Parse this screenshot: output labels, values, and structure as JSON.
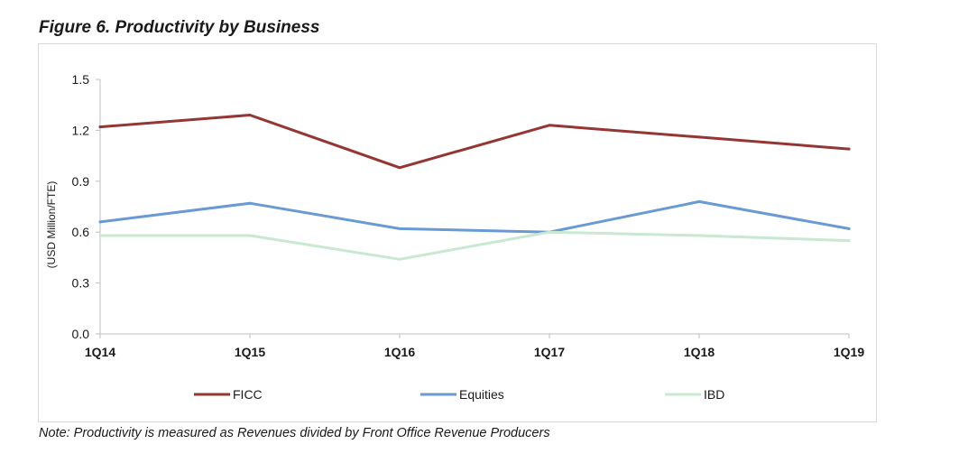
{
  "figure": {
    "title": "Figure 6. Productivity by Business",
    "note": "Note: Productivity is measured as Revenues divided by Front Office Revenue Producers"
  },
  "chart_data": {
    "type": "line",
    "title": "Figure 6. Productivity by Business",
    "xlabel": "",
    "ylabel": "(USD Million/FTE)",
    "categories": [
      "1Q14",
      "1Q15",
      "1Q16",
      "1Q17",
      "1Q18",
      "1Q19"
    ],
    "ylim": [
      0,
      1.5
    ],
    "yticks": [
      0.0,
      0.3,
      0.6,
      0.9,
      1.2,
      1.5
    ],
    "ytick_labels": [
      "0.0",
      "0.3",
      "0.6",
      "0.9",
      "1.2",
      "1.5"
    ],
    "grid": false,
    "legend_position": "bottom",
    "series": [
      {
        "name": "FICC",
        "color": "#943634",
        "values": [
          1.22,
          1.29,
          0.98,
          1.23,
          1.16,
          1.09
        ]
      },
      {
        "name": "Equities",
        "color": "#6a9ad4",
        "values": [
          0.66,
          0.77,
          0.62,
          0.6,
          0.78,
          0.62
        ]
      },
      {
        "name": "IBD",
        "color": "#c8e8d2",
        "values": [
          0.58,
          0.58,
          0.44,
          0.6,
          0.58,
          0.55
        ]
      }
    ]
  }
}
